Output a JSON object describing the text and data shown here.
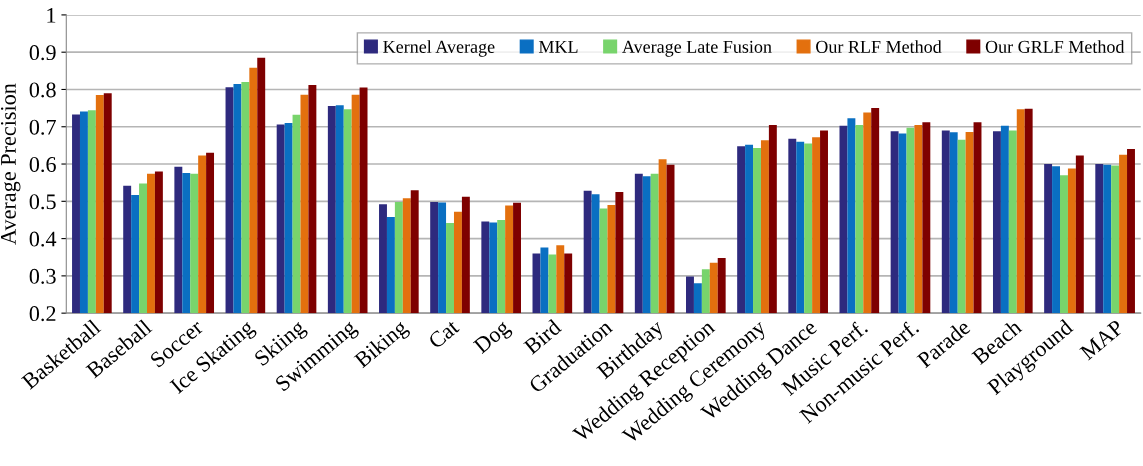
{
  "chart_data": {
    "type": "bar",
    "ylabel": "Average Precision",
    "categories": [
      "Basketball",
      "Baseball",
      "Soccer",
      "Ice Skating",
      "Skiing",
      "Swimming",
      "Biking",
      "Cat",
      "Dog",
      "Bird",
      "Graduation",
      "Birthday",
      "Wedding Reception",
      "Wedding Ceremony",
      "Wedding Dance",
      "Music Perf.",
      "Non-music Perf.",
      "Parade",
      "Beach",
      "Playground",
      "MAP"
    ],
    "series": [
      {
        "name": "Kernel Average",
        "color": "#2e2a7e",
        "values": [
          0.733,
          0.542,
          0.593,
          0.806,
          0.706,
          0.756,
          0.492,
          0.498,
          0.446,
          0.36,
          0.528,
          0.574,
          0.298,
          0.648,
          0.668,
          0.703,
          0.688,
          0.69,
          0.688,
          0.6,
          0.6
        ]
      },
      {
        "name": "MKL",
        "color": "#0a6fc2",
        "values": [
          0.741,
          0.517,
          0.576,
          0.815,
          0.71,
          0.758,
          0.458,
          0.497,
          0.443,
          0.376,
          0.519,
          0.567,
          0.28,
          0.652,
          0.66,
          0.723,
          0.682,
          0.685,
          0.703,
          0.594,
          0.598
        ]
      },
      {
        "name": "Average Late Fusion",
        "color": "#78d46c",
        "values": [
          0.744,
          0.548,
          0.574,
          0.82,
          0.732,
          0.747,
          0.498,
          0.442,
          0.45,
          0.357,
          0.481,
          0.574,
          0.318,
          0.643,
          0.655,
          0.705,
          0.697,
          0.665,
          0.69,
          0.57,
          0.596
        ]
      },
      {
        "name": "Our RLF Method",
        "color": "#e3700e",
        "values": [
          0.785,
          0.574,
          0.623,
          0.858,
          0.786,
          0.786,
          0.508,
          0.472,
          0.489,
          0.382,
          0.49,
          0.613,
          0.335,
          0.664,
          0.672,
          0.738,
          0.705,
          0.686,
          0.747,
          0.588,
          0.625
        ]
      },
      {
        "name": "Our GRLF Method",
        "color": "#7e0000",
        "values": [
          0.79,
          0.58,
          0.63,
          0.885,
          0.812,
          0.805,
          0.53,
          0.512,
          0.496,
          0.36,
          0.525,
          0.598,
          0.348,
          0.705,
          0.69,
          0.75,
          0.712,
          0.712,
          0.748,
          0.623,
          0.64
        ]
      }
    ],
    "ylim": [
      0.2,
      1
    ],
    "yticks": [
      0.2,
      0.3,
      0.4,
      0.5,
      0.6,
      0.7,
      0.8,
      0.9,
      1
    ],
    "grid": "y",
    "legend": "top right"
  }
}
